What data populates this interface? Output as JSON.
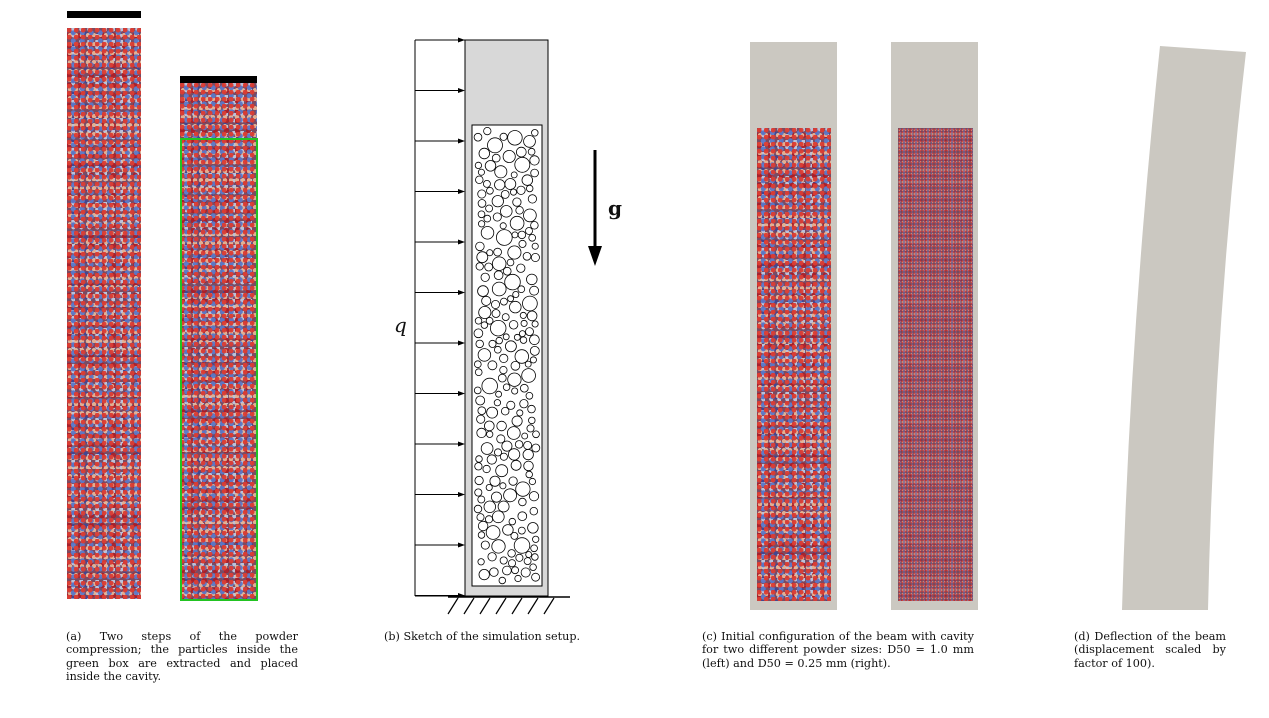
{
  "captions": {
    "a": "(a) Two steps of the powder compression; the particles inside the green box are extracted and placed inside the cavity.",
    "b": "(b) Sketch of the simulation setup.",
    "c": "(c) Initial configuration of the beam with cavity for two different powder sizes: D50 = 1.0 mm (left) and D50 = 0.25 mm (right).",
    "d": "(d) Deflection of the beam (displacement scaled by factor of 100)."
  },
  "sketch": {
    "load_label": "q",
    "gravity_label": "g"
  },
  "colors": {
    "green_box": "#22c322",
    "beam_gray": "#cbc8c1",
    "sketch_gray": "#d8d8d8"
  }
}
